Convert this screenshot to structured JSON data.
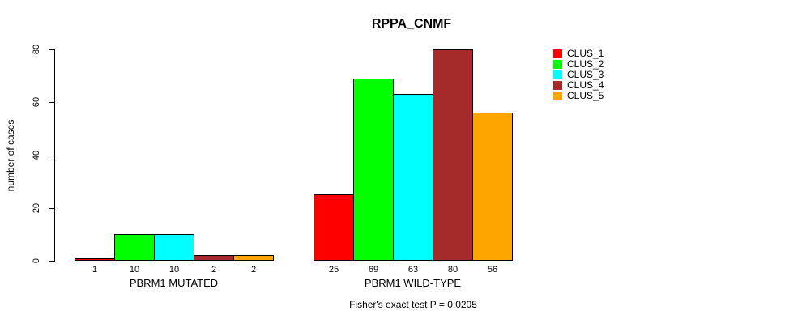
{
  "chart_data": {
    "type": "bar",
    "title": "RPPA_CNMF",
    "ylabel": "number of cases",
    "xlabel": "",
    "ylim": [
      0,
      80
    ],
    "yticks": [
      0,
      20,
      40,
      60,
      80
    ],
    "grid": false,
    "legend_position": "right",
    "categories": [
      "PBRM1 MUTATED",
      "PBRM1 WILD-TYPE"
    ],
    "series": [
      {
        "name": "CLUS_1",
        "color": "#FF0000",
        "values": [
          1,
          25
        ]
      },
      {
        "name": "CLUS_2",
        "color": "#00FF00",
        "values": [
          10,
          69
        ]
      },
      {
        "name": "CLUS_3",
        "color": "#00FFFF",
        "values": [
          10,
          63
        ]
      },
      {
        "name": "CLUS_4",
        "color": "#A52A2A",
        "values": [
          2,
          80
        ]
      },
      {
        "name": "CLUS_5",
        "color": "#FFA500",
        "values": [
          2,
          56
        ]
      }
    ],
    "bar_value_labels": [
      [
        "1",
        "10",
        "10",
        "2",
        "2"
      ],
      [
        "25",
        "69",
        "63",
        "80",
        "56"
      ]
    ],
    "annotation": "Fisher's exact test P = 0.0205"
  },
  "colors": {
    "background": "#FFFFFF",
    "axis": "#000000",
    "bar_border": "#000000",
    "text": "#000000"
  }
}
